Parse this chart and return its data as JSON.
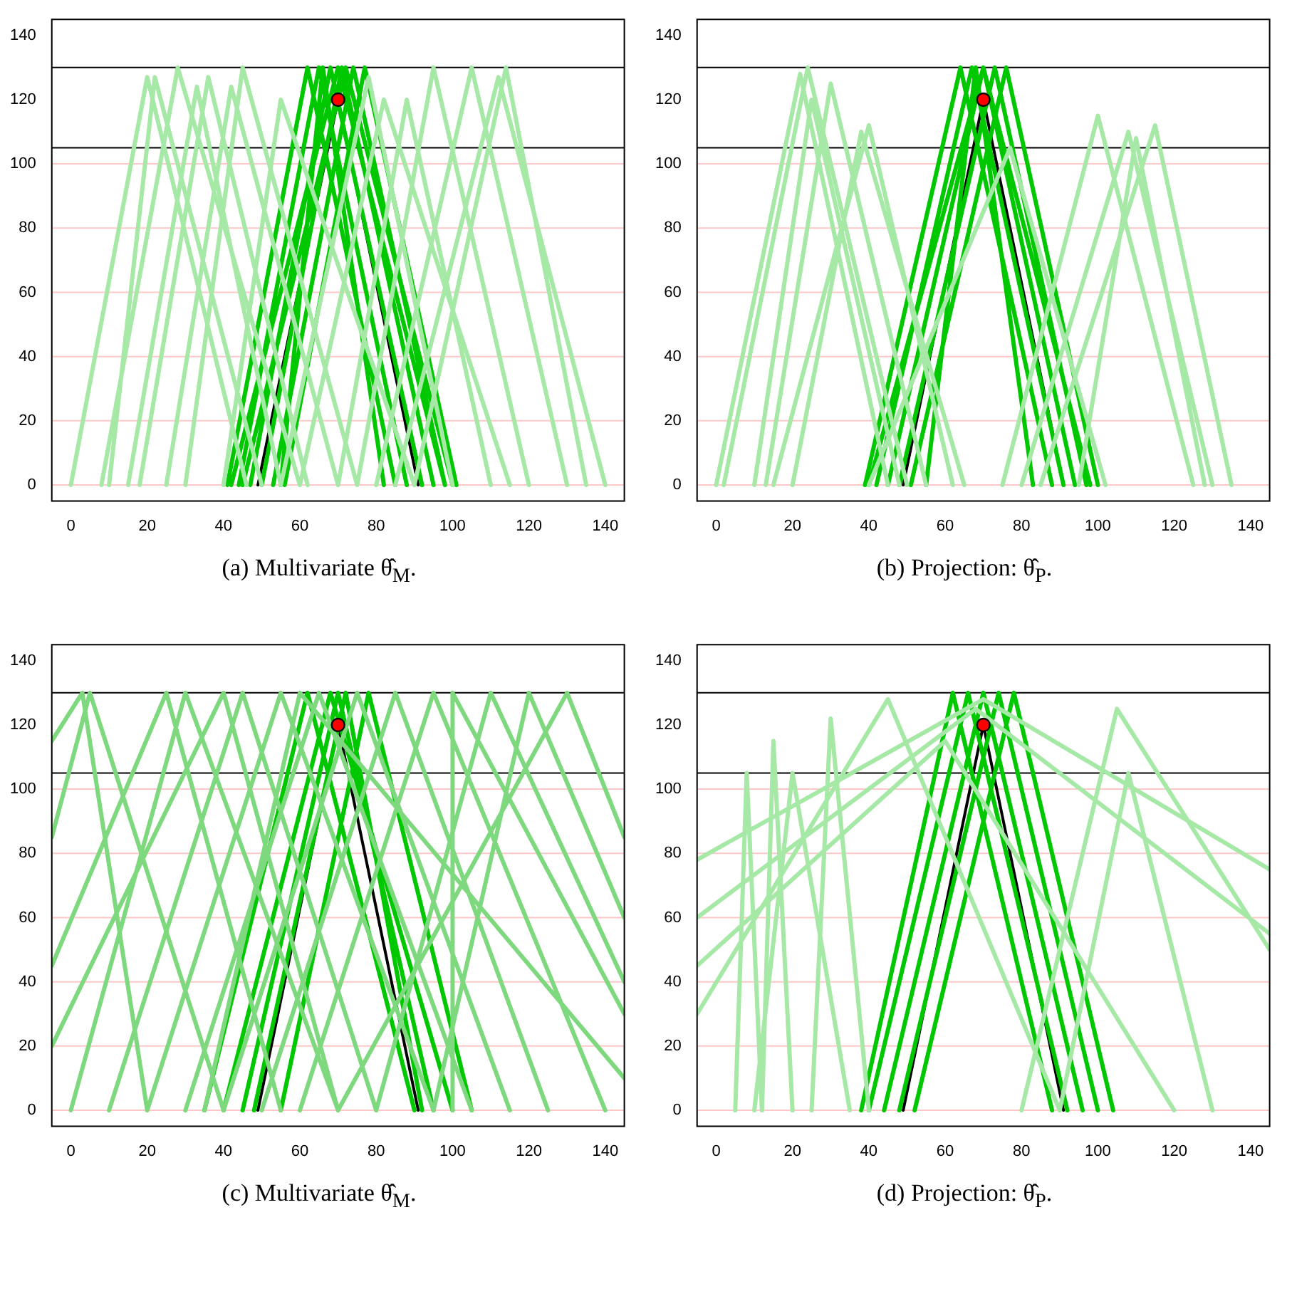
{
  "chart_data": [
    {
      "type": "line",
      "xlabel": "(a) Multivariate θ̂$_{M}$.",
      "xlim": [
        -5,
        145
      ],
      "xticks": [
        0,
        20,
        40,
        60,
        80,
        100,
        120,
        140
      ],
      "ylim": [
        -5,
        145
      ],
      "yticks": [
        0,
        20,
        40,
        60,
        80,
        100,
        120,
        140
      ],
      "ref_lines": [
        {
          "axis": "y",
          "value": 0,
          "color": "#ffc8c8"
        },
        {
          "axis": "y",
          "value": 20,
          "color": "#ffc8c8"
        },
        {
          "axis": "y",
          "value": 40,
          "color": "#ffc8c8"
        },
        {
          "axis": "y",
          "value": 60,
          "color": "#ffc8c8"
        },
        {
          "axis": "y",
          "value": 80,
          "color": "#ffc8c8"
        },
        {
          "axis": "y",
          "value": 100,
          "color": "#ffc8c8"
        },
        {
          "axis": "y",
          "value": 105,
          "color": "#000000"
        },
        {
          "axis": "y",
          "value": 130,
          "color": "#000000"
        }
      ],
      "series": [
        {
          "type": "line",
          "marker": "none",
          "color": "#a6e8a6",
          "x": [
            0,
            20,
            46,
            null,
            10,
            22,
            50,
            null,
            8,
            28,
            60,
            null,
            15,
            33,
            55,
            null,
            18,
            36,
            62,
            null,
            25,
            42,
            70,
            null,
            30,
            45,
            75,
            null,
            40,
            55,
            90,
            null,
            55,
            78,
            100,
            null,
            60,
            82,
            115,
            null,
            70,
            88,
            110,
            null,
            75,
            95,
            120,
            null,
            80,
            105,
            130,
            null,
            85,
            112,
            140,
            null,
            90,
            114,
            135
          ],
          "values": [
            0,
            127,
            0,
            null,
            0,
            127,
            0,
            null,
            0,
            130,
            0,
            null,
            0,
            124,
            0,
            null,
            0,
            127,
            0,
            null,
            0,
            124,
            0,
            null,
            0,
            130,
            0,
            null,
            0,
            120,
            0,
            null,
            0,
            127,
            0,
            null,
            0,
            120,
            0,
            null,
            0,
            120,
            0,
            null,
            0,
            130,
            0,
            null,
            0,
            130,
            0,
            null,
            0,
            127,
            0,
            null,
            0,
            130,
            0
          ]
        },
        {
          "type": "line",
          "marker": "none",
          "color": "#00c800",
          "x": [
            41,
            62,
            85,
            null,
            44,
            65,
            88,
            null,
            47,
            68,
            92,
            null,
            50,
            71,
            95,
            null,
            53,
            74,
            98,
            null,
            56,
            77,
            101,
            null,
            42,
            70,
            98,
            null,
            45,
            72,
            100,
            null,
            55,
            66,
            82
          ],
          "values": [
            0,
            130,
            0,
            null,
            0,
            130,
            0,
            null,
            0,
            130,
            0,
            null,
            0,
            130,
            0,
            null,
            0,
            130,
            0,
            null,
            0,
            130,
            0,
            null,
            0,
            130,
            0,
            null,
            0,
            130,
            0,
            null,
            0,
            130,
            0
          ]
        },
        {
          "type": "line",
          "marker": "none",
          "color": "#000000",
          "x": [
            49,
            70,
            91
          ],
          "values": [
            0,
            120,
            0
          ]
        },
        {
          "type": "scatter",
          "marker": "circle",
          "color": "#ff0000",
          "x": [
            70
          ],
          "values": [
            120
          ]
        }
      ]
    },
    {
      "type": "line",
      "xlabel": "(b) Projection: θ̂$_{P}$.",
      "xlim": [
        -5,
        145
      ],
      "xticks": [
        0,
        20,
        40,
        60,
        80,
        100,
        120,
        140
      ],
      "ylim": [
        -5,
        145
      ],
      "yticks": [
        0,
        20,
        40,
        60,
        80,
        100,
        120,
        140
      ],
      "ref_lines": [
        {
          "axis": "y",
          "value": 0,
          "color": "#ffc8c8"
        },
        {
          "axis": "y",
          "value": 20,
          "color": "#ffc8c8"
        },
        {
          "axis": "y",
          "value": 40,
          "color": "#ffc8c8"
        },
        {
          "axis": "y",
          "value": 60,
          "color": "#ffc8c8"
        },
        {
          "axis": "y",
          "value": 80,
          "color": "#ffc8c8"
        },
        {
          "axis": "y",
          "value": 100,
          "color": "#ffc8c8"
        },
        {
          "axis": "y",
          "value": 105,
          "color": "#000000"
        },
        {
          "axis": "y",
          "value": 130,
          "color": "#000000"
        }
      ],
      "series": [
        {
          "type": "line",
          "marker": "none",
          "color": "#a6e8a6",
          "x": [
            0,
            22,
            45,
            null,
            2,
            24,
            50,
            null,
            13,
            30,
            55,
            null,
            20,
            38,
            65,
            null,
            15,
            40,
            62,
            null,
            10,
            25,
            48,
            null,
            40,
            77,
            102,
            null,
            75,
            100,
            125,
            null,
            80,
            108,
            130,
            null,
            85,
            115,
            135,
            null,
            95,
            110,
            128
          ],
          "values": [
            0,
            128,
            0,
            null,
            0,
            130,
            0,
            null,
            0,
            125,
            0,
            null,
            0,
            110,
            0,
            null,
            0,
            112,
            0,
            null,
            0,
            120,
            0,
            null,
            0,
            105,
            0,
            null,
            0,
            115,
            0,
            null,
            0,
            110,
            0,
            null,
            0,
            112,
            0,
            null,
            0,
            108,
            0
          ]
        },
        {
          "type": "line",
          "marker": "none",
          "color": "#00c800",
          "x": [
            39,
            64,
            88,
            null,
            42,
            67,
            91,
            null,
            45,
            70,
            94,
            null,
            48,
            73,
            97,
            null,
            51,
            76,
            100,
            null,
            40,
            70,
            98,
            null,
            55,
            68,
            83
          ],
          "values": [
            0,
            130,
            0,
            null,
            0,
            130,
            0,
            null,
            0,
            130,
            0,
            null,
            0,
            130,
            0,
            null,
            0,
            130,
            0,
            null,
            0,
            130,
            0,
            null,
            0,
            130,
            0
          ]
        },
        {
          "type": "line",
          "marker": "none",
          "color": "#000000",
          "x": [
            49,
            70,
            91
          ],
          "values": [
            0,
            120,
            0
          ]
        },
        {
          "type": "scatter",
          "marker": "circle",
          "color": "#ff0000",
          "x": [
            70
          ],
          "values": [
            120
          ]
        }
      ]
    },
    {
      "type": "line",
      "xlabel": "(c) Multivariate θ̂$_{M}$.",
      "xlim": [
        -5,
        145
      ],
      "xticks": [
        0,
        20,
        40,
        60,
        80,
        100,
        120,
        140
      ],
      "ylim": [
        -5,
        145
      ],
      "yticks": [
        0,
        20,
        40,
        60,
        80,
        100,
        120,
        140
      ],
      "ref_lines": [
        {
          "axis": "y",
          "value": 0,
          "color": "#ffc8c8"
        },
        {
          "axis": "y",
          "value": 20,
          "color": "#ffc8c8"
        },
        {
          "axis": "y",
          "value": 40,
          "color": "#ffc8c8"
        },
        {
          "axis": "y",
          "value": 60,
          "color": "#ffc8c8"
        },
        {
          "axis": "y",
          "value": 80,
          "color": "#ffc8c8"
        },
        {
          "axis": "y",
          "value": 100,
          "color": "#ffc8c8"
        },
        {
          "axis": "y",
          "value": 105,
          "color": "#000000"
        },
        {
          "axis": "y",
          "value": 130,
          "color": "#000000"
        }
      ],
      "series": [
        {
          "type": "line",
          "marker": "none",
          "color": "#7ed87e",
          "x": [
            0,
            30,
            70,
            null,
            10,
            45,
            80,
            null,
            20,
            55,
            95,
            null,
            30,
            65,
            105,
            null,
            40,
            75,
            115,
            null,
            50,
            85,
            125,
            null,
            60,
            95,
            140,
            null,
            -5,
            25,
            55,
            null,
            -5,
            5,
            40,
            null,
            -5,
            40,
            70,
            null,
            80,
            110,
            145,
            null,
            95,
            120,
            145,
            null,
            100,
            100,
            145,
            null,
            -5,
            3,
            20,
            null,
            70,
            130,
            145,
            null,
            35,
            60,
            145
          ],
          "values": [
            0,
            130,
            0,
            null,
            0,
            130,
            0,
            null,
            0,
            130,
            0,
            null,
            0,
            130,
            0,
            null,
            0,
            130,
            0,
            null,
            0,
            130,
            0,
            null,
            0,
            130,
            0,
            null,
            45,
            130,
            0,
            null,
            85,
            130,
            0,
            null,
            20,
            130,
            0,
            null,
            0,
            130,
            40,
            null,
            0,
            130,
            60,
            null,
            0,
            130,
            30,
            null,
            115,
            130,
            0,
            null,
            0,
            130,
            85,
            null,
            0,
            130,
            10
          ]
        },
        {
          "type": "line",
          "marker": "none",
          "color": "#00c800",
          "x": [
            45,
            70,
            95,
            null,
            40,
            68,
            100,
            null,
            48,
            72,
            92,
            null,
            35,
            62,
            90,
            null,
            55,
            78,
            105
          ],
          "values": [
            0,
            130,
            0,
            null,
            0,
            130,
            0,
            null,
            0,
            130,
            0,
            null,
            0,
            130,
            0,
            null,
            0,
            130,
            0
          ]
        },
        {
          "type": "line",
          "marker": "none",
          "color": "#000000",
          "x": [
            49,
            70,
            91
          ],
          "values": [
            0,
            120,
            0
          ]
        },
        {
          "type": "scatter",
          "marker": "circle",
          "color": "#ff0000",
          "x": [
            70
          ],
          "values": [
            120
          ]
        }
      ]
    },
    {
      "type": "line",
      "xlabel": "(d) Projection: θ̂$_{P}$.",
      "xlim": [
        -5,
        145
      ],
      "xticks": [
        0,
        20,
        40,
        60,
        80,
        100,
        120,
        140
      ],
      "ylim": [
        -5,
        145
      ],
      "yticks": [
        0,
        20,
        40,
        60,
        80,
        100,
        120,
        140
      ],
      "ref_lines": [
        {
          "axis": "y",
          "value": 0,
          "color": "#ffc8c8"
        },
        {
          "axis": "y",
          "value": 20,
          "color": "#ffc8c8"
        },
        {
          "axis": "y",
          "value": 40,
          "color": "#ffc8c8"
        },
        {
          "axis": "y",
          "value": 60,
          "color": "#ffc8c8"
        },
        {
          "axis": "y",
          "value": 80,
          "color": "#ffc8c8"
        },
        {
          "axis": "y",
          "value": 100,
          "color": "#ffc8c8"
        },
        {
          "axis": "y",
          "value": 105,
          "color": "#000000"
        },
        {
          "axis": "y",
          "value": 130,
          "color": "#000000"
        }
      ],
      "series": [
        {
          "type": "line",
          "marker": "none",
          "color": "#a6e8a6",
          "x": [
            -5,
            70,
            145,
            null,
            -5,
            68,
            145,
            null,
            -5,
            60,
            120,
            null,
            10,
            20,
            35,
            null,
            5,
            8,
            12,
            null,
            12,
            15,
            20,
            null,
            25,
            30,
            40,
            null,
            -5,
            45,
            90,
            null,
            80,
            105,
            145,
            null,
            90,
            108,
            130
          ],
          "values": [
            78,
            128,
            75,
            null,
            60,
            125,
            55,
            null,
            45,
            115,
            0,
            null,
            0,
            105,
            0,
            null,
            0,
            105,
            0,
            null,
            0,
            115,
            0,
            null,
            0,
            122,
            0,
            null,
            30,
            128,
            0,
            null,
            0,
            125,
            50,
            null,
            0,
            105,
            0
          ]
        },
        {
          "type": "line",
          "marker": "none",
          "color": "#00c800",
          "x": [
            40,
            66,
            92,
            null,
            44,
            70,
            96,
            null,
            48,
            74,
            100,
            null,
            38,
            62,
            88,
            null,
            52,
            78,
            104
          ],
          "values": [
            0,
            130,
            0,
            null,
            0,
            130,
            0,
            null,
            0,
            130,
            0,
            null,
            0,
            130,
            0,
            null,
            0,
            130,
            0
          ]
        },
        {
          "type": "line",
          "marker": "none",
          "color": "#000000",
          "x": [
            49,
            70,
            91
          ],
          "values": [
            0,
            120,
            0
          ]
        },
        {
          "type": "scatter",
          "marker": "circle",
          "color": "#ff0000",
          "x": [
            70
          ],
          "values": [
            120
          ]
        }
      ]
    }
  ]
}
